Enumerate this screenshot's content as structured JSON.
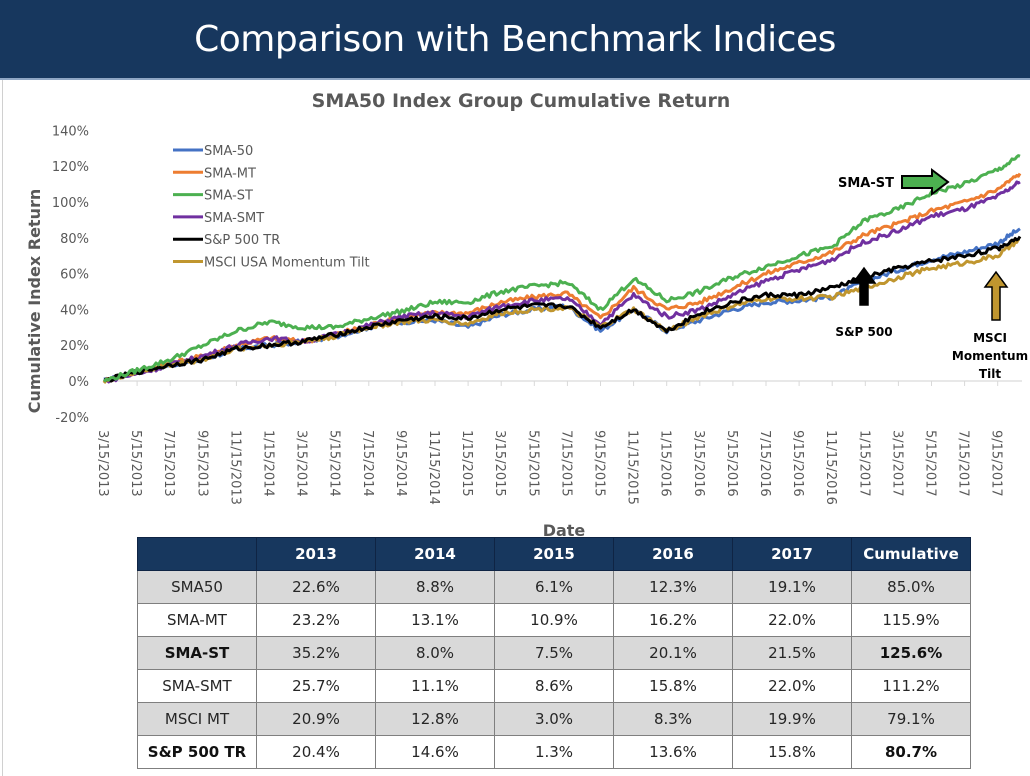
{
  "header": {
    "title": "Comparison with Benchmark Indices"
  },
  "chart_data": {
    "type": "line",
    "title": "SMA50 Index Group Cumulative Return",
    "xlabel": "Date",
    "ylabel": "Cumulative Index Return",
    "ylim": [
      -20,
      140
    ],
    "yticks": [
      "-20%",
      "0%",
      "20%",
      "40%",
      "60%",
      "80%",
      "100%",
      "120%",
      "140%"
    ],
    "ytick_values": [
      -20,
      0,
      20,
      40,
      60,
      80,
      100,
      120,
      140
    ],
    "grid": false,
    "legend_position": "top-left",
    "x_tick_labels": [
      "3/15/2013",
      "5/15/2013",
      "7/15/2013",
      "9/15/2013",
      "11/15/2013",
      "1/15/2014",
      "3/15/2014",
      "5/15/2014",
      "7/15/2014",
      "9/15/2014",
      "11/15/2014",
      "1/15/2015",
      "3/15/2015",
      "5/15/2015",
      "7/15/2015",
      "9/15/2015",
      "11/15/2015",
      "1/15/2016",
      "3/15/2016",
      "5/15/2016",
      "7/15/2016",
      "9/15/2016",
      "11/15/2016",
      "1/15/2017",
      "3/15/2017",
      "5/15/2017",
      "7/15/2017",
      "9/15/2017"
    ],
    "x": [
      "3/15/2013",
      "5/15/2013",
      "7/15/2013",
      "9/15/2013",
      "11/15/2013",
      "1/15/2014",
      "3/15/2014",
      "5/15/2014",
      "7/15/2014",
      "9/15/2014",
      "11/15/2014",
      "1/15/2015",
      "3/15/2015",
      "5/15/2015",
      "7/15/2015",
      "9/15/2015",
      "11/15/2015",
      "1/15/2016",
      "3/15/2016",
      "5/15/2016",
      "7/15/2016",
      "9/15/2016",
      "11/15/2016",
      "1/15/2017",
      "3/15/2017",
      "5/15/2017",
      "7/15/2017",
      "9/15/2017",
      "11/15/2017"
    ],
    "series": [
      {
        "name": "SMA-50",
        "color": "#4472c4",
        "values": [
          0,
          5,
          9,
          12,
          18,
          20,
          22,
          25,
          30,
          33,
          34,
          30,
          37,
          40,
          42,
          28,
          40,
          28,
          34,
          40,
          44,
          45,
          47,
          56,
          62,
          68,
          72,
          77,
          85
        ]
      },
      {
        "name": "SMA-MT",
        "color": "#ed7d31",
        "values": [
          0,
          5,
          10,
          14,
          20,
          24,
          22,
          26,
          31,
          36,
          38,
          38,
          44,
          47,
          49,
          35,
          52,
          40,
          44,
          52,
          60,
          66,
          72,
          82,
          88,
          95,
          100,
          107,
          115.9
        ]
      },
      {
        "name": "SMA-ST",
        "color": "#4cb050",
        "values": [
          0,
          6,
          12,
          20,
          28,
          33,
          30,
          30,
          35,
          39,
          44,
          44,
          50,
          53,
          55,
          40,
          57,
          45,
          50,
          58,
          64,
          70,
          75,
          90,
          96,
          105,
          110,
          118,
          125.6
        ]
      },
      {
        "name": "SMA-SMT",
        "color": "#7030a0",
        "values": [
          0,
          4,
          9,
          14,
          20,
          24,
          22,
          26,
          31,
          36,
          38,
          36,
          42,
          45,
          46,
          32,
          48,
          36,
          40,
          48,
          56,
          62,
          68,
          78,
          84,
          92,
          96,
          103,
          111.2
        ]
      },
      {
        "name": "S&P 500 TR",
        "color": "#000000",
        "values": [
          0,
          5,
          9,
          12,
          18,
          20,
          22,
          26,
          30,
          34,
          36,
          35,
          40,
          42,
          42,
          30,
          40,
          28,
          38,
          44,
          48,
          48,
          52,
          58,
          63,
          67,
          70,
          74,
          80.7
        ]
      },
      {
        "name": "MSCI USA Momentum Tilt",
        "color": "#c0962f",
        "values": [
          0,
          5,
          9,
          12,
          18,
          20,
          22,
          25,
          30,
          33,
          34,
          32,
          38,
          40,
          41,
          30,
          40,
          28,
          36,
          42,
          46,
          46,
          47,
          52,
          58,
          63,
          66,
          70,
          79.1
        ]
      }
    ],
    "annotations": [
      {
        "text": "SMA-ST",
        "arrow": "right",
        "arrow_color": "#4cb050"
      },
      {
        "text": "S&P 500",
        "arrow": "up",
        "arrow_color": "#000000"
      },
      {
        "text": "MSCI Momentum Tilt",
        "lines": [
          "MSCI",
          "Momentum",
          "Tilt"
        ],
        "arrow": "up",
        "arrow_color": "#c0962f"
      }
    ]
  },
  "table": {
    "headers": [
      "",
      "2013",
      "2014",
      "2015",
      "2016",
      "2017",
      "Cumulative"
    ],
    "rows": [
      {
        "name": "SMA50",
        "values": [
          "22.6%",
          "8.8%",
          "6.1%",
          "12.3%",
          "19.1%",
          "85.0%"
        ],
        "bold_name": false,
        "bold_cumulative": false
      },
      {
        "name": "SMA-MT",
        "values": [
          "23.2%",
          "13.1%",
          "10.9%",
          "16.2%",
          "22.0%",
          "115.9%"
        ],
        "bold_name": false,
        "bold_cumulative": false
      },
      {
        "name": "SMA-ST",
        "values": [
          "35.2%",
          "8.0%",
          "7.5%",
          "20.1%",
          "21.5%",
          "125.6%"
        ],
        "bold_name": true,
        "bold_cumulative": true
      },
      {
        "name": "SMA-SMT",
        "values": [
          "25.7%",
          "11.1%",
          "8.6%",
          "15.8%",
          "22.0%",
          "111.2%"
        ],
        "bold_name": false,
        "bold_cumulative": false
      },
      {
        "name": "MSCI MT",
        "values": [
          "20.9%",
          "12.8%",
          "3.0%",
          "8.3%",
          "19.9%",
          "79.1%"
        ],
        "bold_name": false,
        "bold_cumulative": false
      },
      {
        "name": "S&P 500 TR",
        "values": [
          "20.4%",
          "14.6%",
          "1.3%",
          "13.6%",
          "15.8%",
          "80.7%"
        ],
        "bold_name": true,
        "bold_cumulative": true
      }
    ]
  }
}
